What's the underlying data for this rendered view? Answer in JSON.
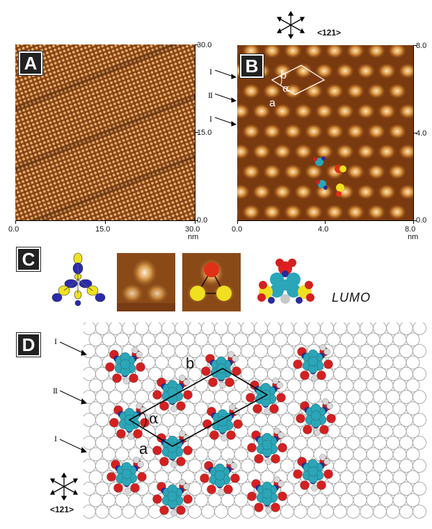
{
  "panels": {
    "A": {
      "label": "A",
      "x_ticks": [
        "0.0",
        "15.0",
        "30.0"
      ],
      "y_ticks": [
        "30.0",
        "15.0",
        "0.0"
      ],
      "unit": "nm"
    },
    "B": {
      "label": "B",
      "x_ticks": [
        "0.0",
        "4.0",
        "8.0"
      ],
      "y_ticks": [
        "8.0",
        "4.0",
        "0.0"
      ],
      "unit": "nm",
      "direction_label": "<121>",
      "row_markers": [
        "I",
        "II",
        "I"
      ],
      "cell_labels": {
        "a": "a",
        "b": "b",
        "alpha": "α"
      }
    },
    "C": {
      "label": "C",
      "orbital_label": "LUMO"
    },
    "D": {
      "label": "D",
      "direction_label": "<121>",
      "row_markers": [
        "I",
        "II",
        "I"
      ],
      "cell_labels": {
        "a": "a",
        "b": "b",
        "alpha": "α"
      }
    }
  },
  "colors": {
    "stm_dark": "#5a2a0a",
    "stm_mid": "#b8682a",
    "stm_bright": "#f4d8a8",
    "carbon": "#2aa6b8",
    "oxygen": "#d42020",
    "nitrogen": "#2a2a9a",
    "hydrogen": "#c8c8c8",
    "orbital_yellow": "#f0e020",
    "orbital_blue": "#2a2ab0",
    "substrate_circle": "#999999"
  }
}
